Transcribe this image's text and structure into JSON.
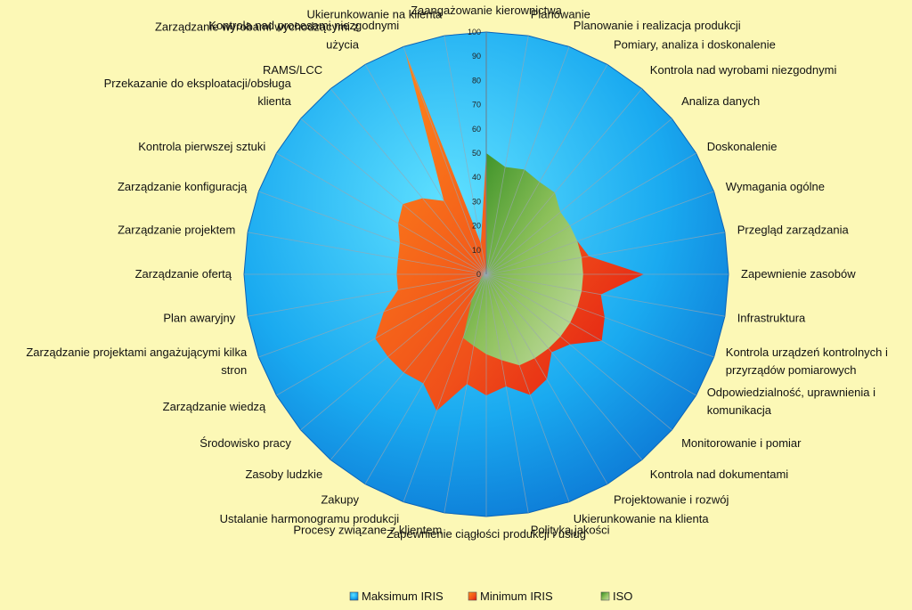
{
  "chart_data": {
    "type": "radar",
    "axis": {
      "min": 0,
      "max": 100,
      "step": 10,
      "ticks": [
        "0",
        "10",
        "20",
        "30",
        "40",
        "50",
        "60",
        "70",
        "80",
        "90",
        "100"
      ]
    },
    "categories": [
      "Zaangażowanie kierownictwa",
      "Planowanie",
      "Planowanie i realizacja produkcji",
      "Pomiary, analiza i doskonalenie",
      "Kontrola nad wyrobami niezgodnymi",
      "Analiza danych",
      "Doskonalenie",
      "Wymagania ogólne",
      "Przegląd zarządzania",
      "Zapewnienie zasobów",
      "Infrastruktura",
      "Kontrola urządzeń kontrolnych i przyrządów pomiarowych",
      "Odpowiedzialność, uprawnienia i komunikacja",
      "Monitorowanie i pomiar",
      "Kontrola nad dokumentami",
      "Projektowanie i rozwój",
      "Ukierunkowanie na klienta",
      "Polityka jakości",
      "Zapewnienie ciągłości produkcji i usług",
      "Procesy związane z klientem",
      "Ustalanie harmonogramu produkcji",
      "Zakupy",
      "Zasoby ludzkie",
      "Środowisko pracy",
      "Zarządzanie wiedzą",
      "Zarządzanie projektami angażującymi kilka stron",
      "Plan awaryjny",
      "Zarządzanie ofertą",
      "Zarządzanie projektem",
      "Zarządzanie konfiguracją",
      "Kontrola pierwszej sztuki",
      "Przekazanie do eksploatacji/obsługa klienta",
      "RAMS/LCC",
      "Zarządzanie wyrobami wychodzącymi z użycia",
      "Kontrola nad procesami niezgodnymi",
      "Ukierunkowanie na klienta"
    ],
    "label_lines": [
      [
        "Zaangażowanie kierownictwa"
      ],
      [
        "Planowanie"
      ],
      [
        "Planowanie i realizacja produkcji"
      ],
      [
        "Pomiary, analiza i doskonalenie"
      ],
      [
        "Kontrola nad wyrobami niezgodnymi"
      ],
      [
        "Analiza danych"
      ],
      [
        "Doskonalenie"
      ],
      [
        "Wymagania ogólne"
      ],
      [
        "Przegląd zarządzania"
      ],
      [
        "Zapewnienie zasobów"
      ],
      [
        "Infrastruktura"
      ],
      [
        "Kontrola urządzeń kontrolnych i",
        "przyrządów pomiarowych"
      ],
      [
        "Odpowiedzialność, uprawnienia i",
        "komunikacja"
      ],
      [
        "Monitorowanie i pomiar"
      ],
      [
        "Kontrola nad dokumentami"
      ],
      [
        "Projektowanie i rozwój"
      ],
      [
        "Ukierunkowanie na klienta"
      ],
      [
        "Polityka jakości"
      ],
      [
        "Zapewnienie ciągłości produkcji i usług"
      ],
      [
        "Procesy związane z klientem"
      ],
      [
        "Ustalanie harmonogramu produkcji"
      ],
      [
        "Zakupy"
      ],
      [
        "Zasoby ludzkie"
      ],
      [
        "Środowisko pracy"
      ],
      [
        "Zarządzanie wiedzą"
      ],
      [
        "Zarządzanie projektami angażującymi kilka",
        "stron"
      ],
      [
        "Plan awaryjny"
      ],
      [
        "Zarządzanie ofertą"
      ],
      [
        "Zarządzanie projektem"
      ],
      [
        "Zarządzanie konfiguracją"
      ],
      [
        "Kontrola pierwszej sztuki"
      ],
      [
        "Przekazanie do eksploatacji/obsługa",
        "klienta"
      ],
      [
        "RAMS/LCC"
      ],
      [
        "Zarządzanie wyrobami wychodzącymi z",
        "użycia"
      ],
      [
        "Kontrola nad procesami niezgodnymi"
      ],
      [
        "Ukierunkowanie na klienta"
      ]
    ],
    "series": [
      {
        "name": "Maksimum IRIS",
        "color": "#1ab2ea",
        "values": [
          100,
          100,
          100,
          100,
          100,
          100,
          100,
          100,
          100,
          100,
          100,
          100,
          100,
          100,
          100,
          100,
          100,
          100,
          100,
          100,
          100,
          100,
          100,
          100,
          100,
          100,
          100,
          100,
          100,
          100,
          100,
          100,
          100,
          100,
          100,
          100
        ]
      },
      {
        "name": "Minimum IRIS",
        "color": "#f05a14",
        "values": [
          50,
          40,
          42,
          36,
          38,
          35,
          36,
          40,
          43,
          65,
          48,
          52,
          55,
          45,
          42,
          50,
          53,
          47,
          50,
          46,
          60,
          52,
          53,
          53,
          53,
          45,
          37,
          37,
          37,
          38,
          42,
          45,
          41,
          35,
          98,
          13
        ]
      },
      {
        "name": "ISO",
        "color": "#5da82e",
        "values": [
          50,
          45,
          46,
          44,
          44,
          40,
          40,
          40,
          40,
          40,
          40,
          40,
          40,
          40,
          40,
          40,
          40,
          36,
          33,
          30,
          28,
          12,
          5,
          3,
          2,
          1,
          1,
          1,
          1,
          1,
          1,
          1,
          1,
          1,
          1,
          1
        ]
      }
    ],
    "legend": {
      "position": "bottom-center"
    }
  }
}
